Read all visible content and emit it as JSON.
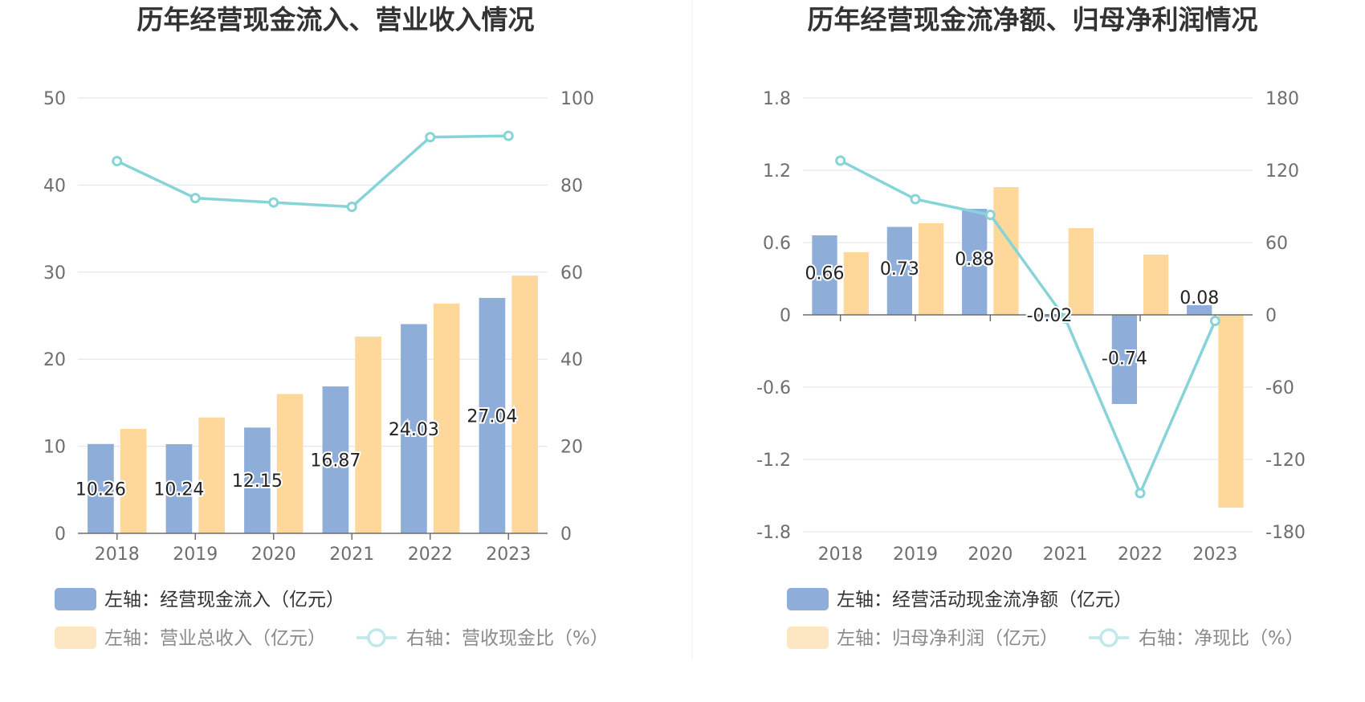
{
  "charts": [
    {
      "title": "历年经营现金流入、营业收入情况",
      "chart_data": {
        "type": "bar",
        "categories": [
          "2018",
          "2019",
          "2020",
          "2021",
          "2022",
          "2023"
        ],
        "series": [
          {
            "name": "左轴：经营现金流入（亿元）",
            "axis": "left",
            "type": "bar",
            "color": "#8eadd9",
            "values": [
              10.26,
              10.24,
              12.15,
              16.87,
              24.03,
              27.04
            ],
            "show_labels": true
          },
          {
            "name": "左轴：营业总收入（亿元）",
            "axis": "left",
            "type": "bar",
            "color": "#fdd89a",
            "values": [
              12.0,
              13.3,
              16.0,
              22.6,
              26.4,
              29.6
            ],
            "show_labels": false
          },
          {
            "name": "右轴：营收现金比（%）",
            "axis": "right",
            "type": "line",
            "color": "#86d4d7",
            "values": [
              85.5,
              77.0,
              76.0,
              75.0,
              91.0,
              91.3
            ],
            "show_labels": false
          }
        ],
        "left_axis": {
          "min": 0,
          "max": 50,
          "ticks": [
            "0",
            "10",
            "20",
            "30",
            "40",
            "50"
          ]
        },
        "right_axis": {
          "min": 0,
          "max": 100,
          "ticks": [
            "0",
            "20",
            "40",
            "60",
            "80",
            "100"
          ]
        },
        "grid": true,
        "legend_position": "bottom-left"
      }
    },
    {
      "title": "历年经营现金流净额、归母净利润情况",
      "chart_data": {
        "type": "bar",
        "categories": [
          "2018",
          "2019",
          "2020",
          "2021",
          "2022",
          "2023"
        ],
        "series": [
          {
            "name": "左轴：经营活动现金流净额（亿元）",
            "axis": "left",
            "type": "bar",
            "color": "#8eadd9",
            "values": [
              0.66,
              0.73,
              0.88,
              -0.02,
              -0.74,
              0.08
            ],
            "show_labels": true
          },
          {
            "name": "左轴：归母净利润（亿元）",
            "axis": "left",
            "type": "bar",
            "color": "#fdd89a",
            "values": [
              0.52,
              0.76,
              1.06,
              0.72,
              0.5,
              -1.6
            ],
            "show_labels": false
          },
          {
            "name": "右轴：净现比（%）",
            "axis": "right",
            "type": "line",
            "color": "#86d4d7",
            "values": [
              128,
              96,
              83,
              -3,
              -148,
              -5
            ],
            "show_labels": false
          }
        ],
        "left_axis": {
          "min": -1.8,
          "max": 1.8,
          "ticks": [
            "-1.8",
            "-1.2",
            "-0.6",
            "0",
            "0.6",
            "1.2",
            "1.8"
          ]
        },
        "right_axis": {
          "min": -180,
          "max": 180,
          "ticks": [
            "-180",
            "-120",
            "-60",
            "0",
            "60",
            "120",
            "180"
          ]
        },
        "grid": true,
        "legend_position": "bottom-left"
      }
    }
  ]
}
